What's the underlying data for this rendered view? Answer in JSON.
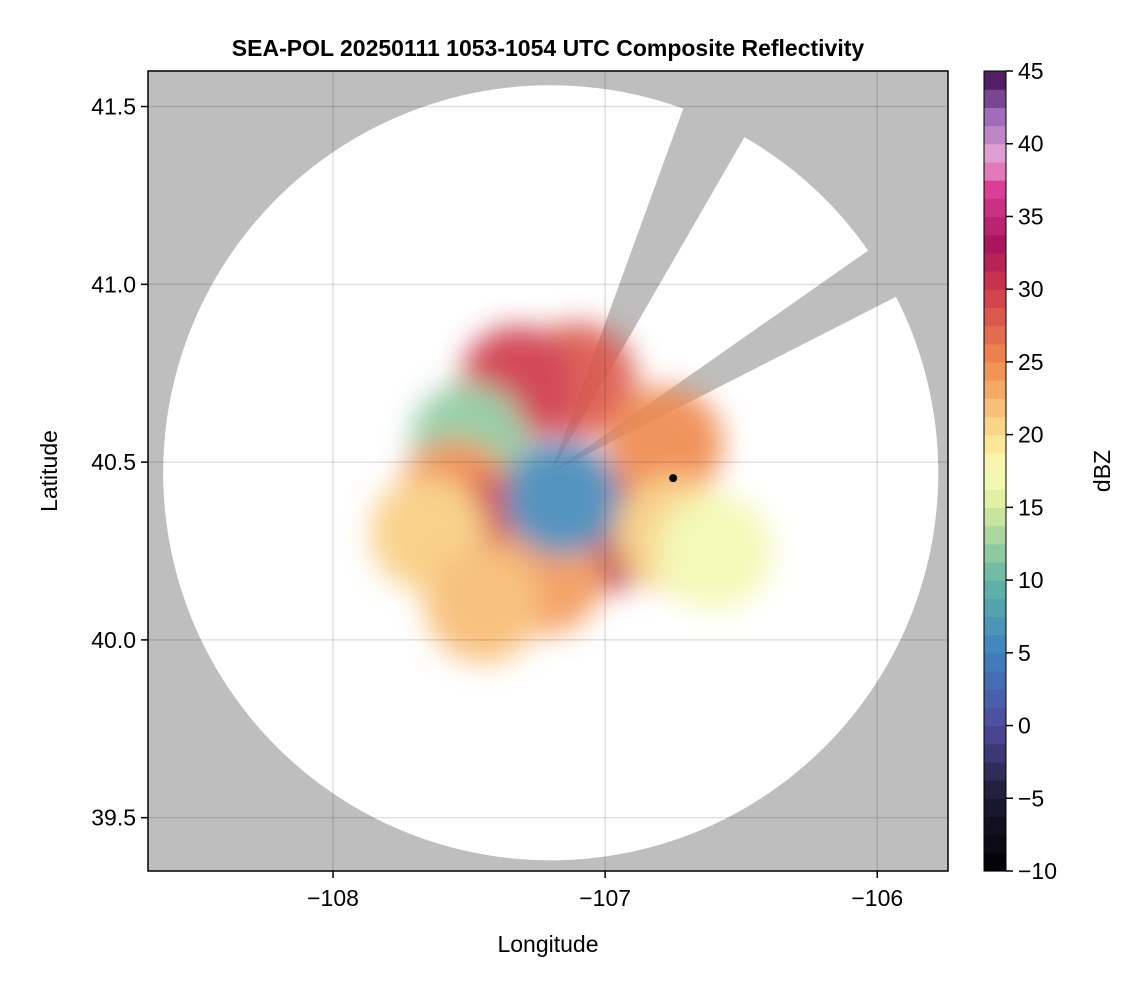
{
  "chart_data": {
    "type": "heatmap",
    "title": "SEA-POL 20250111 1053-1054 UTC Composite Reflectivity",
    "xlabel": "Longitude",
    "ylabel": "Latitude",
    "xlim": [
      -108.68,
      -105.74
    ],
    "ylim": [
      39.35,
      41.6
    ],
    "xticks": [
      -108,
      -107,
      -106
    ],
    "xtick_labels": [
      "−108",
      "−107",
      "−106"
    ],
    "yticks": [
      39.5,
      40.0,
      40.5,
      41.0,
      41.5
    ],
    "ytick_labels": [
      "39.5",
      "40.0",
      "40.5",
      "41.0",
      "41.5"
    ],
    "grid": true,
    "background_color": "#bebebe",
    "coverage_color": "#ffffff",
    "radar_site": {
      "lon": -107.2,
      "lat": 40.47
    },
    "coverage_radius_deg_lat": 1.09,
    "blocked_sectors_deg_from_north": [
      [
        20,
        30
      ],
      [
        55,
        63
      ]
    ],
    "marker": {
      "lon": -106.75,
      "lat": 40.455,
      "color": "#000000"
    },
    "echo_regions": [
      {
        "lon": -107.1,
        "lat": 40.73,
        "dbz": 28
      },
      {
        "lon": -107.32,
        "lat": 40.72,
        "dbz": 30
      },
      {
        "lon": -107.5,
        "lat": 40.56,
        "dbz": 12
      },
      {
        "lon": -107.55,
        "lat": 40.4,
        "dbz": 25
      },
      {
        "lon": -107.38,
        "lat": 40.3,
        "dbz": 30
      },
      {
        "lon": -107.0,
        "lat": 40.3,
        "dbz": 32
      },
      {
        "lon": -107.22,
        "lat": 40.18,
        "dbz": 24
      },
      {
        "lon": -106.78,
        "lat": 40.55,
        "dbz": 25
      },
      {
        "lon": -106.75,
        "lat": 40.3,
        "dbz": 21
      },
      {
        "lon": -107.65,
        "lat": 40.3,
        "dbz": 21
      },
      {
        "lon": -107.16,
        "lat": 40.4,
        "dbz": 6
      },
      {
        "lon": -107.45,
        "lat": 40.1,
        "dbz": 22
      },
      {
        "lon": -106.6,
        "lat": 40.25,
        "dbz": 17
      }
    ],
    "colorbar": {
      "label": "dBZ",
      "min": -10,
      "max": 45,
      "ticks": [
        -10,
        -5,
        0,
        5,
        10,
        15,
        20,
        25,
        30,
        35,
        40,
        45
      ],
      "tick_labels": [
        "−10",
        "−5",
        "0",
        "5",
        "10",
        "15",
        "20",
        "25",
        "30",
        "35",
        "40",
        "45"
      ],
      "stops": [
        {
          "value": -10,
          "color": "#000004"
        },
        {
          "value": -5,
          "color": "#1c1a30"
        },
        {
          "value": 0,
          "color": "#4e4a9e"
        },
        {
          "value": 5,
          "color": "#3f82c0"
        },
        {
          "value": 10,
          "color": "#62b5a4"
        },
        {
          "value": 15,
          "color": "#d8ec9c"
        },
        {
          "value": 17.5,
          "color": "#fafcb8"
        },
        {
          "value": 20,
          "color": "#fbdf8f"
        },
        {
          "value": 25,
          "color": "#f08a4f"
        },
        {
          "value": 30,
          "color": "#cf3a4b"
        },
        {
          "value": 33,
          "color": "#a8155b"
        },
        {
          "value": 37,
          "color": "#dc3f98"
        },
        {
          "value": 39,
          "color": "#e8a6d4"
        },
        {
          "value": 42,
          "color": "#9c6bb8"
        },
        {
          "value": 45,
          "color": "#3f0a4f"
        }
      ]
    }
  }
}
